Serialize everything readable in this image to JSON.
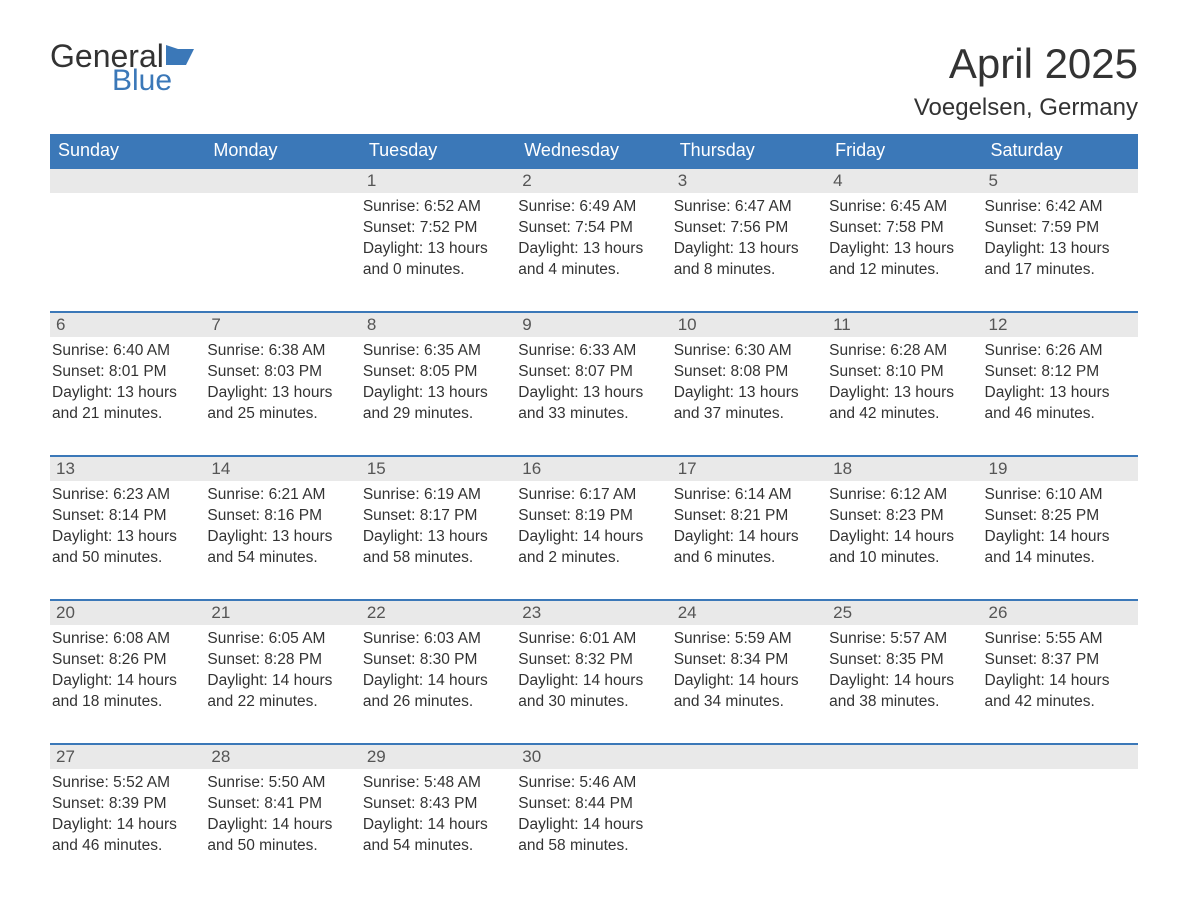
{
  "logo": {
    "general": "General",
    "blue": "Blue",
    "flag_color": "#3b78b8"
  },
  "title": "April 2025",
  "location": "Voegelsen, Germany",
  "colors": {
    "header_bg": "#3b78b8",
    "header_text": "#ffffff",
    "daynum_bg": "#e9e9e9",
    "row_border": "#3b78b8",
    "text": "#333333",
    "background": "#ffffff"
  },
  "typography": {
    "title_fontsize": 42,
    "location_fontsize": 24,
    "weekday_fontsize": 18,
    "body_fontsize": 15.5,
    "daynum_fontsize": 17,
    "logo_fontsize": 32
  },
  "weekdays": [
    "Sunday",
    "Monday",
    "Tuesday",
    "Wednesday",
    "Thursday",
    "Friday",
    "Saturday"
  ],
  "weeks": [
    [
      {
        "day": "",
        "sunrise": "",
        "sunset": "",
        "daylight1": "",
        "daylight2": "",
        "empty": true
      },
      {
        "day": "",
        "sunrise": "",
        "sunset": "",
        "daylight1": "",
        "daylight2": "",
        "empty": true
      },
      {
        "day": "1",
        "sunrise": "Sunrise: 6:52 AM",
        "sunset": "Sunset: 7:52 PM",
        "daylight1": "Daylight: 13 hours",
        "daylight2": "and 0 minutes."
      },
      {
        "day": "2",
        "sunrise": "Sunrise: 6:49 AM",
        "sunset": "Sunset: 7:54 PM",
        "daylight1": "Daylight: 13 hours",
        "daylight2": "and 4 minutes."
      },
      {
        "day": "3",
        "sunrise": "Sunrise: 6:47 AM",
        "sunset": "Sunset: 7:56 PM",
        "daylight1": "Daylight: 13 hours",
        "daylight2": "and 8 minutes."
      },
      {
        "day": "4",
        "sunrise": "Sunrise: 6:45 AM",
        "sunset": "Sunset: 7:58 PM",
        "daylight1": "Daylight: 13 hours",
        "daylight2": "and 12 minutes."
      },
      {
        "day": "5",
        "sunrise": "Sunrise: 6:42 AM",
        "sunset": "Sunset: 7:59 PM",
        "daylight1": "Daylight: 13 hours",
        "daylight2": "and 17 minutes."
      }
    ],
    [
      {
        "day": "6",
        "sunrise": "Sunrise: 6:40 AM",
        "sunset": "Sunset: 8:01 PM",
        "daylight1": "Daylight: 13 hours",
        "daylight2": "and 21 minutes."
      },
      {
        "day": "7",
        "sunrise": "Sunrise: 6:38 AM",
        "sunset": "Sunset: 8:03 PM",
        "daylight1": "Daylight: 13 hours",
        "daylight2": "and 25 minutes."
      },
      {
        "day": "8",
        "sunrise": "Sunrise: 6:35 AM",
        "sunset": "Sunset: 8:05 PM",
        "daylight1": "Daylight: 13 hours",
        "daylight2": "and 29 minutes."
      },
      {
        "day": "9",
        "sunrise": "Sunrise: 6:33 AM",
        "sunset": "Sunset: 8:07 PM",
        "daylight1": "Daylight: 13 hours",
        "daylight2": "and 33 minutes."
      },
      {
        "day": "10",
        "sunrise": "Sunrise: 6:30 AM",
        "sunset": "Sunset: 8:08 PM",
        "daylight1": "Daylight: 13 hours",
        "daylight2": "and 37 minutes."
      },
      {
        "day": "11",
        "sunrise": "Sunrise: 6:28 AM",
        "sunset": "Sunset: 8:10 PM",
        "daylight1": "Daylight: 13 hours",
        "daylight2": "and 42 minutes."
      },
      {
        "day": "12",
        "sunrise": "Sunrise: 6:26 AM",
        "sunset": "Sunset: 8:12 PM",
        "daylight1": "Daylight: 13 hours",
        "daylight2": "and 46 minutes."
      }
    ],
    [
      {
        "day": "13",
        "sunrise": "Sunrise: 6:23 AM",
        "sunset": "Sunset: 8:14 PM",
        "daylight1": "Daylight: 13 hours",
        "daylight2": "and 50 minutes."
      },
      {
        "day": "14",
        "sunrise": "Sunrise: 6:21 AM",
        "sunset": "Sunset: 8:16 PM",
        "daylight1": "Daylight: 13 hours",
        "daylight2": "and 54 minutes."
      },
      {
        "day": "15",
        "sunrise": "Sunrise: 6:19 AM",
        "sunset": "Sunset: 8:17 PM",
        "daylight1": "Daylight: 13 hours",
        "daylight2": "and 58 minutes."
      },
      {
        "day": "16",
        "sunrise": "Sunrise: 6:17 AM",
        "sunset": "Sunset: 8:19 PM",
        "daylight1": "Daylight: 14 hours",
        "daylight2": "and 2 minutes."
      },
      {
        "day": "17",
        "sunrise": "Sunrise: 6:14 AM",
        "sunset": "Sunset: 8:21 PM",
        "daylight1": "Daylight: 14 hours",
        "daylight2": "and 6 minutes."
      },
      {
        "day": "18",
        "sunrise": "Sunrise: 6:12 AM",
        "sunset": "Sunset: 8:23 PM",
        "daylight1": "Daylight: 14 hours",
        "daylight2": "and 10 minutes."
      },
      {
        "day": "19",
        "sunrise": "Sunrise: 6:10 AM",
        "sunset": "Sunset: 8:25 PM",
        "daylight1": "Daylight: 14 hours",
        "daylight2": "and 14 minutes."
      }
    ],
    [
      {
        "day": "20",
        "sunrise": "Sunrise: 6:08 AM",
        "sunset": "Sunset: 8:26 PM",
        "daylight1": "Daylight: 14 hours",
        "daylight2": "and 18 minutes."
      },
      {
        "day": "21",
        "sunrise": "Sunrise: 6:05 AM",
        "sunset": "Sunset: 8:28 PM",
        "daylight1": "Daylight: 14 hours",
        "daylight2": "and 22 minutes."
      },
      {
        "day": "22",
        "sunrise": "Sunrise: 6:03 AM",
        "sunset": "Sunset: 8:30 PM",
        "daylight1": "Daylight: 14 hours",
        "daylight2": "and 26 minutes."
      },
      {
        "day": "23",
        "sunrise": "Sunrise: 6:01 AM",
        "sunset": "Sunset: 8:32 PM",
        "daylight1": "Daylight: 14 hours",
        "daylight2": "and 30 minutes."
      },
      {
        "day": "24",
        "sunrise": "Sunrise: 5:59 AM",
        "sunset": "Sunset: 8:34 PM",
        "daylight1": "Daylight: 14 hours",
        "daylight2": "and 34 minutes."
      },
      {
        "day": "25",
        "sunrise": "Sunrise: 5:57 AM",
        "sunset": "Sunset: 8:35 PM",
        "daylight1": "Daylight: 14 hours",
        "daylight2": "and 38 minutes."
      },
      {
        "day": "26",
        "sunrise": "Sunrise: 5:55 AM",
        "sunset": "Sunset: 8:37 PM",
        "daylight1": "Daylight: 14 hours",
        "daylight2": "and 42 minutes."
      }
    ],
    [
      {
        "day": "27",
        "sunrise": "Sunrise: 5:52 AM",
        "sunset": "Sunset: 8:39 PM",
        "daylight1": "Daylight: 14 hours",
        "daylight2": "and 46 minutes."
      },
      {
        "day": "28",
        "sunrise": "Sunrise: 5:50 AM",
        "sunset": "Sunset: 8:41 PM",
        "daylight1": "Daylight: 14 hours",
        "daylight2": "and 50 minutes."
      },
      {
        "day": "29",
        "sunrise": "Sunrise: 5:48 AM",
        "sunset": "Sunset: 8:43 PM",
        "daylight1": "Daylight: 14 hours",
        "daylight2": "and 54 minutes."
      },
      {
        "day": "30",
        "sunrise": "Sunrise: 5:46 AM",
        "sunset": "Sunset: 8:44 PM",
        "daylight1": "Daylight: 14 hours",
        "daylight2": "and 58 minutes."
      },
      {
        "day": "",
        "sunrise": "",
        "sunset": "",
        "daylight1": "",
        "daylight2": "",
        "empty": true
      },
      {
        "day": "",
        "sunrise": "",
        "sunset": "",
        "daylight1": "",
        "daylight2": "",
        "empty": true
      },
      {
        "day": "",
        "sunrise": "",
        "sunset": "",
        "daylight1": "",
        "daylight2": "",
        "empty": true
      }
    ]
  ]
}
